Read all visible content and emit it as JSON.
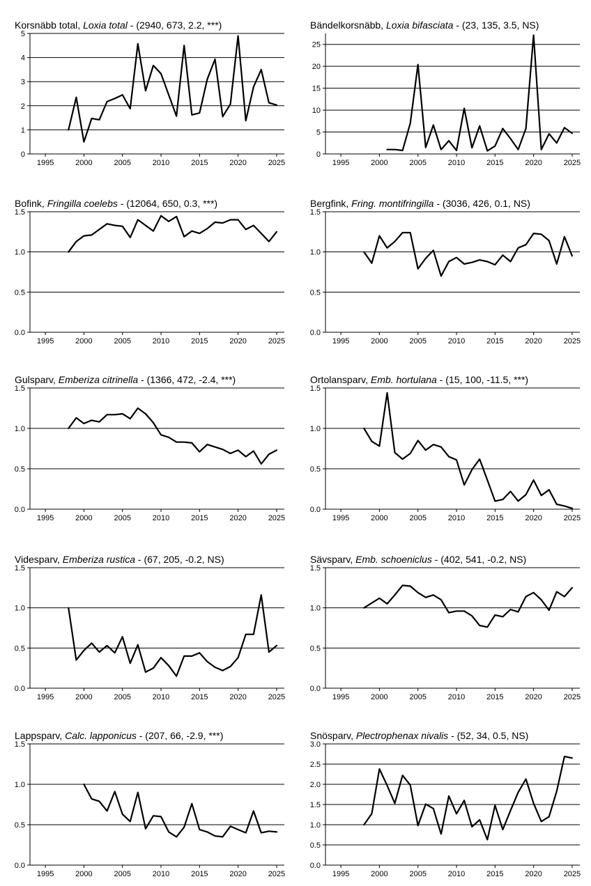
{
  "chart_data": [
    {
      "type": "line",
      "title_main": "Korsnäbb total, ",
      "title_species": "Loxia total",
      "title_stats": " - (2940, 673, 2.2, ***)",
      "ylim": [
        0,
        5
      ],
      "yticks": [
        "0",
        "1",
        "2",
        "3",
        "4",
        "5"
      ],
      "xlim": [
        1993,
        2026
      ],
      "xticks": [
        "1995",
        "2000",
        "2005",
        "2010",
        "2015",
        "2020",
        "2025"
      ],
      "grid": "horizontal",
      "series": [
        {
          "x": [
            1998,
            1999,
            2000,
            2001,
            2002,
            2003,
            2004,
            2005,
            2006,
            2007,
            2008,
            2009,
            2010,
            2011,
            2012,
            2013,
            2014,
            2015,
            2016,
            2017,
            2018,
            2019,
            2020,
            2021,
            2022,
            2023,
            2024,
            2025
          ],
          "values": [
            1.0,
            2.35,
            0.5,
            1.47,
            1.42,
            2.17,
            2.3,
            2.45,
            1.88,
            4.57,
            2.62,
            3.67,
            3.33,
            2.45,
            1.57,
            4.5,
            1.62,
            1.7,
            3.1,
            3.93,
            1.55,
            2.07,
            4.9,
            1.38,
            2.78,
            3.5,
            2.12,
            2.03
          ]
        }
      ]
    },
    {
      "type": "line",
      "title_main": "Bändelkorsnäbb, ",
      "title_species": "Loxia bifasciata",
      "title_stats": " - (23, 135, 3.5, NS)",
      "ylim": [
        0,
        27.5
      ],
      "yticks": [
        "0",
        "5",
        "10",
        "15",
        "20",
        "25"
      ],
      "xlim": [
        1993,
        2026
      ],
      "xticks": [
        "1995",
        "2000",
        "2005",
        "2010",
        "2015",
        "2020",
        "2025"
      ],
      "grid": "horizontal",
      "series": [
        {
          "x": [
            2001,
            2002,
            2003,
            2004,
            2005,
            2006,
            2007,
            2008,
            2009,
            2010,
            2011,
            2012,
            2013,
            2014,
            2015,
            2016,
            2017,
            2018,
            2019,
            2020,
            2021,
            2022,
            2023,
            2024,
            2025
          ],
          "values": [
            1.0,
            1.0,
            0.8,
            7.0,
            20.4,
            1.5,
            6.6,
            1.0,
            3.0,
            0.8,
            10.4,
            1.4,
            6.4,
            0.7,
            1.8,
            5.8,
            3.5,
            1.0,
            5.8,
            27.1,
            1.0,
            4.6,
            2.5,
            6.0,
            4.7
          ]
        }
      ]
    },
    {
      "type": "line",
      "title_main": "Bofink, ",
      "title_species": "Fringilla coelebs",
      "title_stats": " - (12064, 650, 0.3, ***)",
      "ylim": [
        0,
        1.5
      ],
      "yticks": [
        "0.0",
        "0.5",
        "1.0",
        "1.5"
      ],
      "xlim": [
        1993,
        2026
      ],
      "xticks": [
        "1995",
        "2000",
        "2005",
        "2010",
        "2015",
        "2020",
        "2025"
      ],
      "grid": "horizontal",
      "series": [
        {
          "x": [
            1998,
            1999,
            2000,
            2001,
            2002,
            2003,
            2004,
            2005,
            2006,
            2007,
            2008,
            2009,
            2010,
            2011,
            2012,
            2013,
            2014,
            2015,
            2016,
            2017,
            2018,
            2019,
            2020,
            2021,
            2022,
            2023,
            2024,
            2025
          ],
          "values": [
            1.0,
            1.13,
            1.2,
            1.21,
            1.28,
            1.35,
            1.33,
            1.32,
            1.18,
            1.4,
            1.33,
            1.26,
            1.45,
            1.38,
            1.44,
            1.19,
            1.26,
            1.23,
            1.29,
            1.37,
            1.36,
            1.4,
            1.4,
            1.28,
            1.33,
            1.23,
            1.13,
            1.25
          ]
        }
      ]
    },
    {
      "type": "line",
      "title_main": "Bergfink, ",
      "title_species": "Fring. montifringilla",
      "title_stats": " - (3036, 426, 0.1, NS)",
      "ylim": [
        0,
        1.5
      ],
      "yticks": [
        "0.0",
        "0.5",
        "1.0",
        "1.5"
      ],
      "xlim": [
        1993,
        2026
      ],
      "xticks": [
        "1995",
        "2000",
        "2005",
        "2010",
        "2015",
        "2020",
        "2025"
      ],
      "grid": "horizontal",
      "series": [
        {
          "x": [
            1998,
            1999,
            2000,
            2001,
            2002,
            2003,
            2004,
            2005,
            2006,
            2007,
            2008,
            2009,
            2010,
            2011,
            2012,
            2013,
            2014,
            2015,
            2016,
            2017,
            2018,
            2019,
            2020,
            2021,
            2022,
            2023,
            2024,
            2025
          ],
          "values": [
            1.0,
            0.86,
            1.2,
            1.05,
            1.13,
            1.24,
            1.24,
            0.79,
            0.92,
            1.02,
            0.7,
            0.88,
            0.93,
            0.85,
            0.87,
            0.9,
            0.88,
            0.84,
            0.96,
            0.88,
            1.05,
            1.09,
            1.23,
            1.22,
            1.14,
            0.85,
            1.19,
            0.95
          ]
        }
      ]
    },
    {
      "type": "line",
      "title_main": "Gulsparv, ",
      "title_species": "Emberiza citrinella",
      "title_stats": " - (1366, 472, -2.4, ***)",
      "ylim": [
        0,
        1.5
      ],
      "yticks": [
        "0.0",
        "0.5",
        "1.0",
        "1.5"
      ],
      "xlim": [
        1993,
        2026
      ],
      "xticks": [
        "1995",
        "2000",
        "2005",
        "2010",
        "2015",
        "2020",
        "2025"
      ],
      "grid": "horizontal",
      "series": [
        {
          "x": [
            1998,
            1999,
            2000,
            2001,
            2002,
            2003,
            2004,
            2005,
            2006,
            2007,
            2008,
            2009,
            2010,
            2011,
            2012,
            2013,
            2014,
            2015,
            2016,
            2017,
            2018,
            2019,
            2020,
            2021,
            2022,
            2023,
            2024,
            2025
          ],
          "values": [
            1.0,
            1.13,
            1.06,
            1.1,
            1.08,
            1.17,
            1.17,
            1.18,
            1.12,
            1.25,
            1.18,
            1.07,
            0.92,
            0.89,
            0.83,
            0.83,
            0.82,
            0.71,
            0.8,
            0.77,
            0.74,
            0.69,
            0.73,
            0.65,
            0.72,
            0.56,
            0.68,
            0.73
          ]
        }
      ]
    },
    {
      "type": "line",
      "title_main": "Ortolansparv, ",
      "title_species": "Emb. hortulana",
      "title_stats": " - (15, 100, -11.5, ***)",
      "ylim": [
        0,
        1.5
      ],
      "yticks": [
        "0.0",
        "0.5",
        "1.0",
        "1.5"
      ],
      "xlim": [
        1993,
        2026
      ],
      "xticks": [
        "1995",
        "2000",
        "2005",
        "2010",
        "2015",
        "2020",
        "2025"
      ],
      "grid": "horizontal",
      "series": [
        {
          "x": [
            1998,
            1999,
            2000,
            2001,
            2002,
            2003,
            2004,
            2005,
            2006,
            2007,
            2008,
            2009,
            2010,
            2011,
            2012,
            2013,
            2014,
            2015,
            2016,
            2017,
            2018,
            2019,
            2020,
            2021,
            2022,
            2023,
            2024,
            2025
          ],
          "values": [
            1.0,
            0.84,
            0.78,
            1.44,
            0.7,
            0.62,
            0.69,
            0.85,
            0.73,
            0.8,
            0.77,
            0.65,
            0.61,
            0.3,
            0.49,
            0.62,
            0.36,
            0.1,
            0.12,
            0.22,
            0.1,
            0.18,
            0.36,
            0.17,
            0.24,
            0.06,
            0.04,
            0.01
          ]
        }
      ]
    },
    {
      "type": "line",
      "title_main": "Videsparv, ",
      "title_species": "Emberiza rustica",
      "title_stats": " - (67, 205, -0.2, NS)",
      "ylim": [
        0,
        1.5
      ],
      "yticks": [
        "0.0",
        "0.5",
        "1.0",
        "1.5"
      ],
      "xlim": [
        1993,
        2026
      ],
      "xticks": [
        "1995",
        "2000",
        "2005",
        "2010",
        "2015",
        "2020",
        "2025"
      ],
      "grid": "horizontal",
      "series": [
        {
          "x": [
            1998,
            1999,
            2000,
            2001,
            2002,
            2003,
            2004,
            2005,
            2006,
            2007,
            2008,
            2009,
            2010,
            2011,
            2012,
            2013,
            2014,
            2015,
            2016,
            2017,
            2018,
            2019,
            2020,
            2021,
            2022,
            2023,
            2024,
            2025
          ],
          "values": [
            1.0,
            0.35,
            0.47,
            0.56,
            0.45,
            0.53,
            0.44,
            0.64,
            0.31,
            0.54,
            0.2,
            0.25,
            0.38,
            0.28,
            0.15,
            0.4,
            0.4,
            0.44,
            0.33,
            0.26,
            0.22,
            0.27,
            0.38,
            0.67,
            0.67,
            1.16,
            0.45,
            0.53
          ]
        }
      ]
    },
    {
      "type": "line",
      "title_main": "Sävsparv, ",
      "title_species": "Emb. schoeniclus",
      "title_stats": " - (402, 541, -0.2, NS)",
      "ylim": [
        0,
        1.5
      ],
      "yticks": [
        "0.0",
        "0.5",
        "1.0",
        "1.5"
      ],
      "xlim": [
        1993,
        2026
      ],
      "xticks": [
        "1995",
        "2000",
        "2005",
        "2010",
        "2015",
        "2020",
        "2025"
      ],
      "grid": "horizontal",
      "series": [
        {
          "x": [
            1998,
            1999,
            2000,
            2001,
            2002,
            2003,
            2004,
            2005,
            2006,
            2007,
            2008,
            2009,
            2010,
            2011,
            2012,
            2013,
            2014,
            2015,
            2016,
            2017,
            2018,
            2019,
            2020,
            2021,
            2022,
            2023,
            2024,
            2025
          ],
          "values": [
            1.0,
            1.06,
            1.12,
            1.05,
            1.16,
            1.28,
            1.27,
            1.19,
            1.13,
            1.16,
            1.1,
            0.94,
            0.96,
            0.96,
            0.9,
            0.78,
            0.76,
            0.91,
            0.89,
            0.98,
            0.95,
            1.14,
            1.19,
            1.1,
            0.97,
            1.2,
            1.14,
            1.25
          ]
        }
      ]
    },
    {
      "type": "line",
      "title_main": "Lappsparv, ",
      "title_species": "Calc. lapponicus",
      "title_stats": " - (207, 66, -2.9, ***)",
      "ylim": [
        0,
        1.5
      ],
      "yticks": [
        "0.0",
        "0.5",
        "1.0",
        "1.5"
      ],
      "xlim": [
        1993,
        2026
      ],
      "xticks": [
        "1995",
        "2000",
        "2005",
        "2010",
        "2015",
        "2020",
        "2025"
      ],
      "grid": "horizontal",
      "series": [
        {
          "x": [
            2000,
            2001,
            2002,
            2003,
            2004,
            2005,
            2006,
            2007,
            2008,
            2009,
            2010,
            2011,
            2012,
            2013,
            2014,
            2015,
            2016,
            2017,
            2018,
            2019,
            2020,
            2021,
            2022,
            2023,
            2024,
            2025
          ],
          "values": [
            1.0,
            0.82,
            0.79,
            0.67,
            0.91,
            0.63,
            0.54,
            0.9,
            0.45,
            0.61,
            0.6,
            0.41,
            0.35,
            0.47,
            0.76,
            0.44,
            0.41,
            0.36,
            0.35,
            0.48,
            0.44,
            0.4,
            0.67,
            0.4,
            0.42,
            0.41
          ]
        }
      ]
    },
    {
      "type": "line",
      "title_main": "Snösparv, ",
      "title_species": "Plectrophenax nivalis",
      "title_stats": " - (52, 34, 0.5, NS)",
      "ylim": [
        0,
        3.0
      ],
      "yticks": [
        "0.0",
        "0.5",
        "1.0",
        "1.5",
        "2.0",
        "2.5",
        "3.0"
      ],
      "xlim": [
        1993,
        2026
      ],
      "xticks": [
        "1995",
        "2000",
        "2005",
        "2010",
        "2015",
        "2020",
        "2025"
      ],
      "grid": "horizontal",
      "series": [
        {
          "x": [
            1998,
            1999,
            2000,
            2001,
            2002,
            2003,
            2004,
            2005,
            2006,
            2007,
            2008,
            2009,
            2010,
            2011,
            2012,
            2013,
            2014,
            2015,
            2016,
            2017,
            2018,
            2019,
            2020,
            2021,
            2022,
            2023,
            2024,
            2025
          ],
          "values": [
            1.0,
            1.27,
            2.38,
            1.97,
            1.53,
            2.22,
            1.98,
            0.98,
            1.51,
            1.4,
            0.77,
            1.71,
            1.27,
            1.6,
            0.95,
            1.12,
            0.63,
            1.48,
            0.88,
            1.35,
            1.8,
            2.13,
            1.53,
            1.08,
            1.2,
            1.83,
            2.69,
            2.65
          ]
        }
      ]
    }
  ]
}
